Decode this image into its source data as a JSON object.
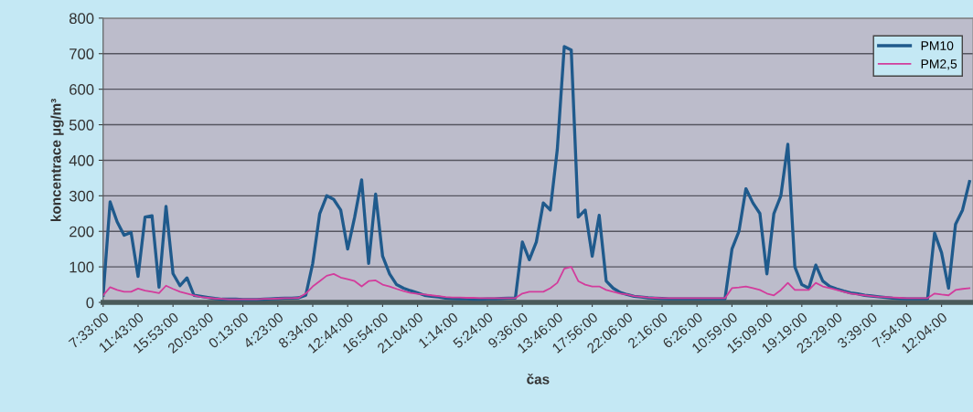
{
  "chart_data": {
    "type": "line",
    "xlabel": "čas",
    "ylabel": "koncentrace µg/m³",
    "ylim": [
      0,
      800
    ],
    "yticks": [
      0,
      100,
      200,
      300,
      400,
      500,
      600,
      700,
      800
    ],
    "categories": [
      "7:33:00",
      null,
      null,
      null,
      null,
      "11:43:00",
      null,
      null,
      null,
      null,
      "15:53:00",
      null,
      null,
      null,
      null,
      "20:03:00",
      null,
      null,
      null,
      null,
      "0:13:00",
      null,
      null,
      null,
      null,
      "4:23:00",
      null,
      null,
      null,
      null,
      "8:34:00",
      null,
      null,
      null,
      null,
      "12:44:00",
      null,
      null,
      null,
      null,
      "16:54:00",
      null,
      null,
      null,
      null,
      "21:04:00",
      null,
      null,
      null,
      null,
      "1:14:00",
      null,
      null,
      null,
      null,
      "5:24:00",
      null,
      null,
      null,
      null,
      "9:36:00",
      null,
      null,
      null,
      null,
      "13:46:00",
      null,
      null,
      null,
      null,
      "17:56:00",
      null,
      null,
      null,
      null,
      "22:06:00",
      null,
      null,
      null,
      null,
      "2:16:00",
      null,
      null,
      null,
      null,
      "6:26:00",
      null,
      null,
      null,
      null,
      "10:59:00",
      null,
      null,
      null,
      null,
      "15:09:00",
      null,
      null,
      null,
      null,
      "19:19:00",
      null,
      null,
      null,
      null,
      "23:29:00",
      null,
      null,
      null,
      null,
      "3:39:00",
      null,
      null,
      null,
      null,
      "7:54:00",
      null,
      null,
      null,
      null,
      "12:04:00",
      null,
      null,
      null,
      null
    ],
    "grid": "y",
    "legend": "top right",
    "marker": "none",
    "line_style": "solid",
    "series": [
      {
        "name": "PM10",
        "color": "#1f5a8c",
        "values": [
          20,
          283,
          227,
          189,
          197,
          73,
          240,
          244,
          43,
          270,
          81,
          47,
          69,
          20,
          17,
          14,
          11,
          9,
          9,
          9,
          8,
          8,
          8,
          9,
          10,
          11,
          12,
          12,
          13,
          20,
          110,
          250,
          300,
          290,
          260,
          150,
          240,
          345,
          110,
          305,
          130,
          80,
          50,
          40,
          33,
          27,
          20,
          17,
          15,
          12,
          11,
          10,
          10,
          9,
          9,
          10,
          10,
          11,
          12,
          12,
          170,
          120,
          170,
          280,
          260,
          430,
          720,
          710,
          240,
          260,
          130,
          245,
          60,
          40,
          28,
          22,
          17,
          15,
          13,
          12,
          11,
          10,
          10,
          10,
          10,
          10,
          10,
          10,
          10,
          10,
          150,
          200,
          320,
          280,
          250,
          80,
          250,
          300,
          445,
          100,
          50,
          40,
          105,
          60,
          45,
          38,
          32,
          27,
          24,
          20,
          18,
          16,
          14,
          12,
          11,
          10,
          10,
          10,
          10,
          195,
          140,
          40,
          220,
          260,
          340
        ]
      },
      {
        "name": "PM2,5",
        "color": "#d23c9c",
        "values": [
          20,
          43,
          35,
          30,
          30,
          39,
          33,
          30,
          26,
          47,
          38,
          30,
          25,
          20,
          15,
          13,
          11,
          10,
          9,
          9,
          9,
          9,
          9,
          10,
          10,
          11,
          12,
          12,
          13,
          25,
          45,
          60,
          75,
          80,
          70,
          65,
          60,
          45,
          60,
          62,
          50,
          45,
          38,
          32,
          27,
          24,
          22,
          20,
          18,
          15,
          14,
          14,
          13,
          13,
          12,
          12,
          12,
          12,
          12,
          12,
          25,
          30,
          30,
          30,
          40,
          55,
          95,
          100,
          60,
          50,
          45,
          45,
          35,
          30,
          25,
          22,
          18,
          16,
          14,
          13,
          12,
          12,
          12,
          12,
          12,
          12,
          12,
          12,
          12,
          12,
          40,
          42,
          45,
          40,
          35,
          25,
          20,
          35,
          55,
          35,
          35,
          35,
          55,
          45,
          40,
          35,
          30,
          25,
          22,
          20,
          18,
          16,
          15,
          14,
          13,
          12,
          12,
          12,
          12,
          25,
          22,
          20,
          35,
          38,
          40
        ]
      }
    ]
  }
}
